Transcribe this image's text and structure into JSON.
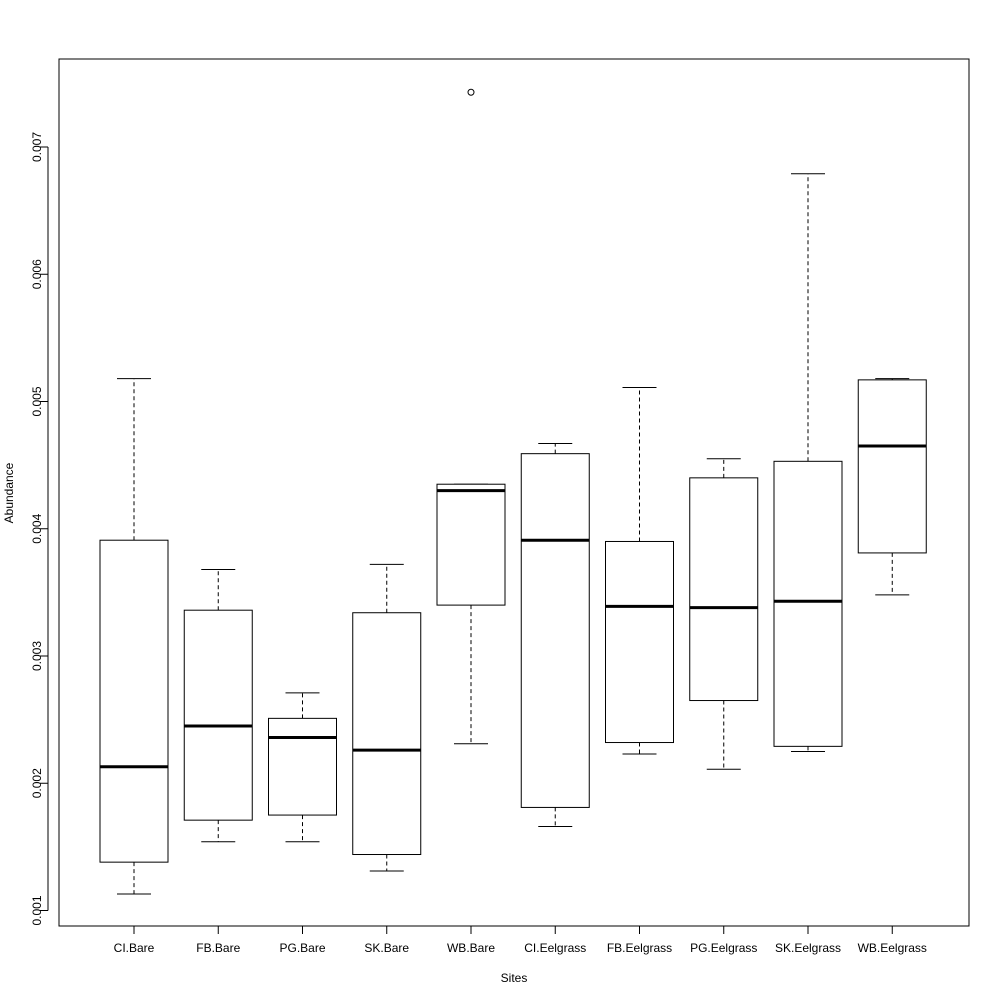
{
  "chart_data": {
    "type": "boxplot",
    "title": "",
    "xlabel": "Sites",
    "ylabel": "Abundance",
    "ylim": [
      0.00088,
      0.00763
    ],
    "yticks": [
      0.001,
      0.002,
      0.003,
      0.004,
      0.005,
      0.006,
      0.007
    ],
    "ytick_labels": [
      "0.001",
      "0.002",
      "0.003",
      "0.004",
      "0.005",
      "0.006",
      "0.007"
    ],
    "grid": false,
    "categories": [
      "CI.Bare",
      "FB.Bare",
      "PG.Bare",
      "SK.Bare",
      "WB.Bare",
      "CI.Eelgrass",
      "FB.Eelgrass",
      "PG.Eelgrass",
      "SK.Eelgrass",
      "WB.Eelgrass"
    ],
    "boxes": [
      {
        "min": 0.00113,
        "q1": 0.00138,
        "median": 0.00213,
        "q3": 0.00391,
        "max": 0.00518,
        "outliers": []
      },
      {
        "min": 0.00154,
        "q1": 0.00171,
        "median": 0.00245,
        "q3": 0.00336,
        "max": 0.00368,
        "outliers": []
      },
      {
        "min": 0.00154,
        "q1": 0.00175,
        "median": 0.00236,
        "q3": 0.00251,
        "max": 0.00271,
        "outliers": []
      },
      {
        "min": 0.00131,
        "q1": 0.00144,
        "median": 0.00226,
        "q3": 0.00334,
        "max": 0.00372,
        "outliers": []
      },
      {
        "min": 0.00231,
        "q1": 0.0034,
        "median": 0.0043,
        "q3": 0.00435,
        "max": 0.00435,
        "outliers": [
          0.00743
        ]
      },
      {
        "min": 0.00166,
        "q1": 0.00181,
        "median": 0.00391,
        "q3": 0.00459,
        "max": 0.00467,
        "outliers": []
      },
      {
        "min": 0.00223,
        "q1": 0.00232,
        "median": 0.00339,
        "q3": 0.0039,
        "max": 0.00511,
        "outliers": []
      },
      {
        "min": 0.00211,
        "q1": 0.00265,
        "median": 0.00338,
        "q3": 0.0044,
        "max": 0.00455,
        "outliers": []
      },
      {
        "min": 0.00225,
        "q1": 0.00229,
        "median": 0.00343,
        "q3": 0.00453,
        "max": 0.00679,
        "outliers": []
      },
      {
        "min": 0.00348,
        "q1": 0.00381,
        "median": 0.00465,
        "q3": 0.00517,
        "max": 0.00518,
        "outliers": []
      }
    ]
  }
}
